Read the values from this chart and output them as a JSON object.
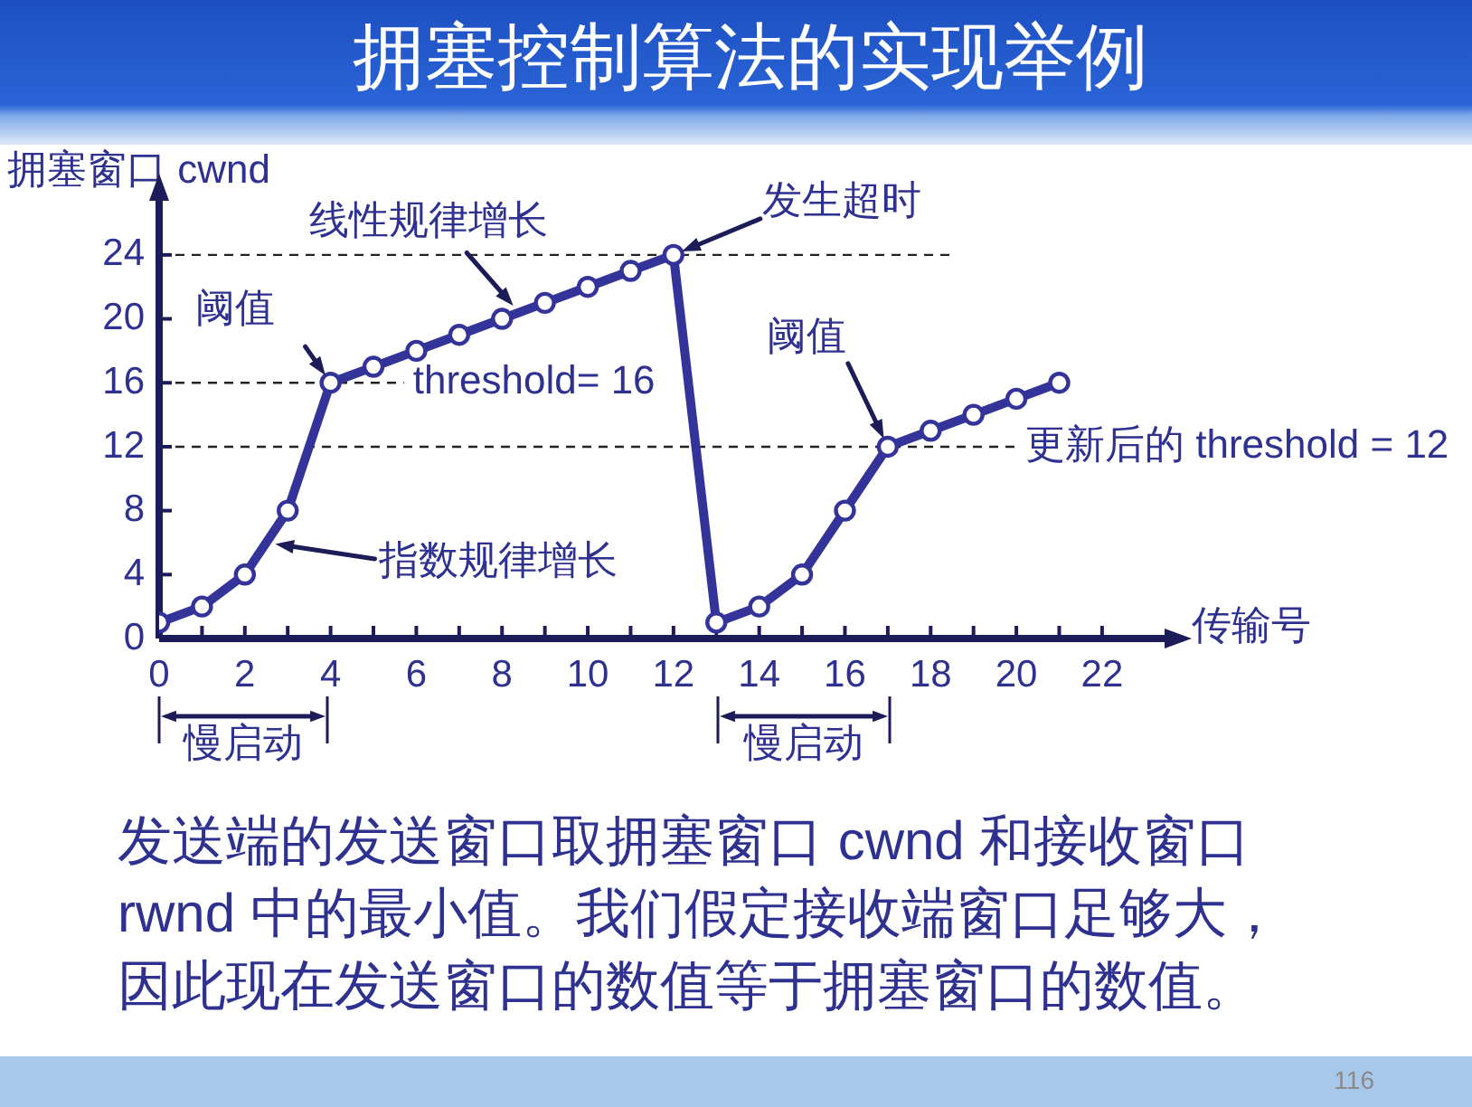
{
  "chart_data": {
    "type": "line",
    "title": "拥塞控制算法的实现举例",
    "xlabel": "传输号",
    "ylabel": "拥塞窗口 cwnd",
    "x": [
      0,
      1,
      2,
      3,
      4,
      5,
      6,
      7,
      8,
      9,
      10,
      11,
      12,
      13,
      14,
      15,
      16,
      17,
      18,
      19,
      20,
      21
    ],
    "series": [
      {
        "color": "#333399",
        "values": [
          1,
          2,
          4,
          8,
          16,
          17,
          18,
          19,
          20,
          21,
          22,
          23,
          24,
          1,
          2,
          4,
          8,
          12,
          13,
          14,
          15,
          16
        ]
      }
    ],
    "xlim": [
      0,
      23.5
    ],
    "ylim": [
      0,
      27.5
    ],
    "xticks": [
      0,
      {
        "value": 1,
        "label": null
      },
      2,
      {
        "value": 3,
        "label": null
      },
      4,
      {
        "value": 5,
        "label": null
      },
      6,
      {
        "value": 7,
        "label": null
      },
      8,
      {
        "value": 9,
        "label": null
      },
      10,
      {
        "value": 11,
        "label": null
      },
      12,
      {
        "value": 13,
        "label": null
      },
      14,
      {
        "value": 15,
        "label": null
      },
      16,
      {
        "value": 17,
        "label": null
      },
      18,
      {
        "value": 19,
        "label": null
      },
      20,
      {
        "value": 21,
        "label": null
      },
      22
    ],
    "yticks": [
      0,
      4,
      8,
      12,
      16,
      20,
      24
    ],
    "ref_lines": [
      {
        "axis": "y",
        "value": 24,
        "line_style": "dashed"
      },
      {
        "axis": "y",
        "value": 16,
        "label": "threshold= 16",
        "line_style": "dashed"
      },
      {
        "axis": "y",
        "value": 12,
        "label": "更新后的 threshold = 12",
        "line_style": "dashed"
      }
    ],
    "annotations": [
      {
        "text": "线性规律增长",
        "x": 8.4,
        "y": 20.4
      },
      {
        "text": "阈值",
        "x": 4,
        "y": 16
      },
      {
        "text": "指数规律增长",
        "x": 2.5,
        "y": 6
      },
      {
        "text": "发生超时",
        "x": 12,
        "y": 24
      },
      {
        "text": "阈值",
        "x": 17,
        "y": 12
      },
      "慢启动",
      "慢启动",
      "发送端的发送窗口取拥塞窗口 cwnd 和接收窗口 rwnd 中的最小值。我们假定接收端窗口足够大，因此现在发送窗口的数值等于拥塞窗口的数值。",
      "116"
    ],
    "grid": false,
    "legend": false,
    "marker": "circle",
    "line_style": "solid"
  }
}
